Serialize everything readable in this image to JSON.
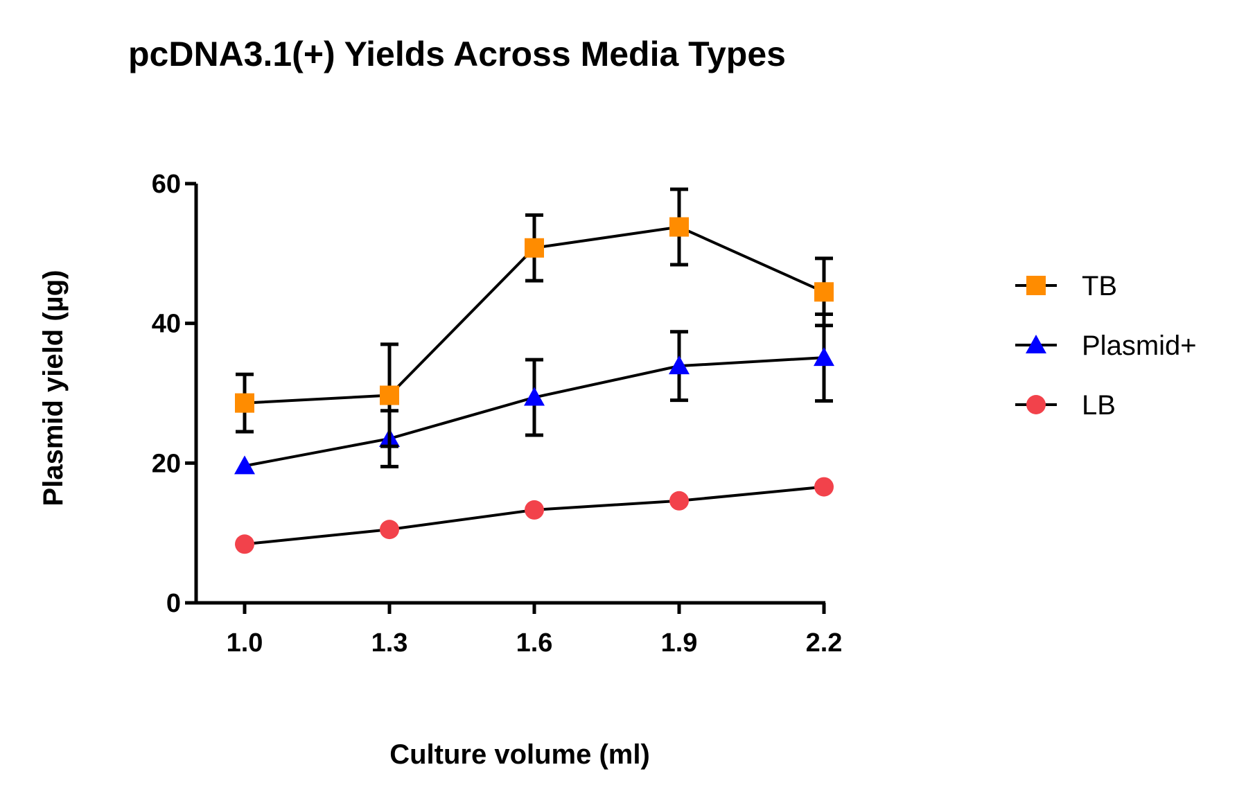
{
  "chart_data": {
    "type": "line",
    "title": "pcDNA3.1(+) Yields Across Media Types",
    "xlabel": "Culture volume (ml)",
    "ylabel": "Plasmid yield (µg)",
    "x": [
      1.0,
      1.3,
      1.6,
      1.9,
      2.2
    ],
    "x_tick_labels": [
      "1.0",
      "1.3",
      "1.6",
      "1.9",
      "2.2"
    ],
    "ylim": [
      0,
      60
    ],
    "y_ticks": [
      0,
      20,
      40,
      60
    ],
    "y_tick_labels": [
      "0",
      "20",
      "40",
      "60"
    ],
    "grid": false,
    "legend_position": "right",
    "series": [
      {
        "name": "TB",
        "marker": "square",
        "color": "#FF8C00",
        "values": [
          28.6,
          29.7,
          50.8,
          53.8,
          44.5
        ],
        "errors": [
          4.1,
          7.3,
          4.7,
          5.4,
          4.8
        ]
      },
      {
        "name": "Plasmid+",
        "marker": "triangle",
        "color": "#0000FF",
        "values": [
          19.6,
          23.5,
          29.4,
          33.9,
          35.1
        ],
        "errors": [
          0,
          4.0,
          5.4,
          4.9,
          6.2
        ]
      },
      {
        "name": "LB",
        "marker": "circle",
        "color": "#F2424B",
        "values": [
          8.4,
          10.5,
          13.3,
          14.6,
          16.6
        ],
        "errors": [
          0,
          0,
          0,
          0,
          0
        ]
      }
    ]
  }
}
